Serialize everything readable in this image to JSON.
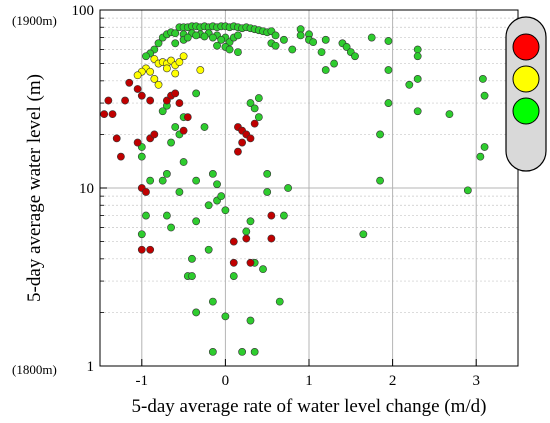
{
  "chart_data": {
    "type": "scatter",
    "title": "",
    "xlabel": "5-day average rate of water level change (m/d)",
    "ylabel": "5-day average water level (m)",
    "xlim": [
      -1.5,
      3.5
    ],
    "ylim": [
      1,
      100
    ],
    "yscale": "log",
    "grid": true,
    "x_ticks": [
      -1,
      0,
      1,
      2,
      3
    ],
    "y_ticks": [
      1,
      10,
      100
    ],
    "y_top_note": "(1900m)",
    "y_bottom_note": "(1800m)",
    "legend": {
      "type": "traffic-light",
      "placement": "right",
      "lights": [
        "#ff0000",
        "#ffff00",
        "#00ff00"
      ]
    },
    "colors": {
      "red": "#c00000",
      "yellow": "#ffff00",
      "green": "#2ecc2e"
    },
    "series": [
      {
        "color_key": "green",
        "points": [
          [
            -0.55,
            80
          ],
          [
            -0.5,
            80
          ],
          [
            -0.45,
            80
          ],
          [
            -0.4,
            81
          ],
          [
            -0.35,
            81
          ],
          [
            -0.3,
            80
          ],
          [
            -0.25,
            81
          ],
          [
            -0.2,
            80
          ],
          [
            -0.15,
            81
          ],
          [
            -0.1,
            80
          ],
          [
            -0.05,
            81
          ],
          [
            0.0,
            81
          ],
          [
            0.05,
            80
          ],
          [
            0.1,
            81
          ],
          [
            0.15,
            80
          ],
          [
            0.2,
            79
          ],
          [
            0.25,
            80
          ],
          [
            0.3,
            79
          ],
          [
            -0.8,
            65
          ],
          [
            -0.75,
            70
          ],
          [
            -0.7,
            73
          ],
          [
            -0.65,
            75
          ],
          [
            -0.6,
            74
          ],
          [
            -0.5,
            73
          ],
          [
            -0.4,
            74
          ],
          [
            -0.3,
            73
          ],
          [
            -0.2,
            74
          ],
          [
            -0.1,
            72
          ],
          [
            0.0,
            70
          ],
          [
            -0.85,
            60
          ],
          [
            -0.9,
            57
          ],
          [
            -0.95,
            55
          ],
          [
            -0.6,
            65
          ],
          [
            -0.5,
            68
          ],
          [
            -0.45,
            70
          ],
          [
            -0.35,
            72
          ],
          [
            -0.25,
            71
          ],
          [
            -0.15,
            70
          ],
          [
            -0.05,
            68
          ],
          [
            0.05,
            66
          ],
          [
            0.1,
            70
          ],
          [
            0.15,
            72
          ],
          [
            0.35,
            78
          ],
          [
            0.4,
            77
          ],
          [
            0.45,
            76
          ],
          [
            0.5,
            75
          ],
          [
            0.55,
            76
          ],
          [
            0.6,
            72
          ],
          [
            0.7,
            68
          ],
          [
            0.8,
            60
          ],
          [
            0.9,
            78
          ],
          [
            0.9,
            72
          ],
          [
            1.0,
            73
          ],
          [
            1.0,
            68
          ],
          [
            1.05,
            66
          ],
          [
            1.2,
            68
          ],
          [
            1.4,
            65
          ],
          [
            1.45,
            62
          ],
          [
            1.5,
            58
          ],
          [
            1.55,
            55
          ],
          [
            1.75,
            70
          ],
          [
            1.95,
            67
          ],
          [
            2.3,
            60
          ],
          [
            2.3,
            55
          ],
          [
            0.0,
            62
          ],
          [
            0.05,
            60
          ],
          [
            0.15,
            58
          ],
          [
            -0.1,
            63
          ],
          [
            0.55,
            65
          ],
          [
            0.6,
            63
          ],
          [
            1.15,
            58
          ],
          [
            1.3,
            50
          ],
          [
            1.2,
            46
          ],
          [
            1.95,
            46
          ],
          [
            2.3,
            41
          ],
          [
            2.2,
            38
          ],
          [
            1.95,
            30
          ],
          [
            2.3,
            27
          ],
          [
            2.68,
            26
          ],
          [
            3.08,
            41
          ],
          [
            3.1,
            33
          ],
          [
            -0.5,
            25
          ],
          [
            -0.6,
            22
          ],
          [
            -0.7,
            29
          ],
          [
            -0.75,
            27
          ],
          [
            -0.65,
            18
          ],
          [
            -0.55,
            20
          ],
          [
            -0.35,
            34
          ],
          [
            -0.25,
            22
          ],
          [
            0.3,
            30
          ],
          [
            0.35,
            28
          ],
          [
            0.4,
            32
          ],
          [
            0.4,
            25
          ],
          [
            1.85,
            20
          ],
          [
            3.1,
            17
          ],
          [
            3.05,
            15
          ],
          [
            1.85,
            11
          ],
          [
            2.9,
            9.7
          ],
          [
            -1.0,
            17
          ],
          [
            -1.0,
            15
          ],
          [
            -0.9,
            11
          ],
          [
            -0.5,
            14
          ],
          [
            -0.7,
            12
          ],
          [
            -0.75,
            11
          ],
          [
            -0.55,
            9.5
          ],
          [
            -0.35,
            11
          ],
          [
            -0.15,
            12
          ],
          [
            -0.1,
            10.5
          ],
          [
            0.5,
            12
          ],
          [
            0.5,
            9.5
          ],
          [
            0.75,
            10
          ],
          [
            0.7,
            7
          ],
          [
            -1.0,
            5.5
          ],
          [
            -0.95,
            7
          ],
          [
            -0.7,
            7
          ],
          [
            -0.65,
            6
          ],
          [
            -0.35,
            6.5
          ],
          [
            -0.2,
            8
          ],
          [
            -0.1,
            8.5
          ],
          [
            -0.05,
            9
          ],
          [
            0.0,
            7.5
          ],
          [
            0.3,
            6.5
          ],
          [
            0.25,
            5.7
          ],
          [
            1.65,
            5.5
          ],
          [
            -0.4,
            4
          ],
          [
            -0.2,
            4.5
          ],
          [
            -0.45,
            3.2
          ],
          [
            -0.4,
            3.2
          ],
          [
            0.35,
            3.8
          ],
          [
            0.45,
            3.5
          ],
          [
            0.1,
            3.2
          ],
          [
            -0.15,
            2.3
          ],
          [
            -0.35,
            2
          ],
          [
            0.0,
            1.9
          ],
          [
            0.3,
            1.8
          ],
          [
            0.65,
            2.3
          ],
          [
            -0.15,
            1.2
          ],
          [
            0.2,
            1.2
          ],
          [
            0.35,
            1.2
          ]
        ]
      },
      {
        "color_key": "yellow",
        "points": [
          [
            -0.85,
            53
          ],
          [
            -0.8,
            50
          ],
          [
            -0.75,
            51
          ],
          [
            -0.7,
            50
          ],
          [
            -0.65,
            52
          ],
          [
            -0.6,
            49
          ],
          [
            -0.55,
            51
          ],
          [
            -0.5,
            55
          ],
          [
            -0.95,
            47
          ],
          [
            -1.0,
            45
          ],
          [
            -1.05,
            43
          ],
          [
            -0.7,
            47
          ],
          [
            -0.6,
            44
          ],
          [
            -0.9,
            45
          ],
          [
            -0.3,
            46
          ],
          [
            -0.85,
            41
          ],
          [
            -0.8,
            38
          ]
        ]
      },
      {
        "color_key": "red",
        "points": [
          [
            -1.15,
            39
          ],
          [
            -1.05,
            36
          ],
          [
            -1.0,
            33
          ],
          [
            -0.9,
            31
          ],
          [
            -0.7,
            31
          ],
          [
            -0.65,
            33
          ],
          [
            -0.6,
            34
          ],
          [
            -0.55,
            30
          ],
          [
            -1.2,
            31
          ],
          [
            -1.4,
            31
          ],
          [
            -1.35,
            26
          ],
          [
            -1.45,
            26
          ],
          [
            -1.3,
            19
          ],
          [
            -1.25,
            15
          ],
          [
            -1.05,
            18
          ],
          [
            -0.9,
            19
          ],
          [
            -0.85,
            20
          ],
          [
            -0.5,
            21
          ],
          [
            -0.45,
            25
          ],
          [
            -1.0,
            10
          ],
          [
            -0.95,
            9.5
          ],
          [
            0.15,
            22
          ],
          [
            0.2,
            21
          ],
          [
            0.25,
            20
          ],
          [
            0.2,
            18
          ],
          [
            0.3,
            19
          ],
          [
            0.15,
            16
          ],
          [
            0.35,
            23
          ],
          [
            -1.0,
            4.5
          ],
          [
            -0.9,
            4.5
          ],
          [
            0.1,
            5
          ],
          [
            0.25,
            5.2
          ],
          [
            0.55,
            7
          ],
          [
            0.55,
            5.2
          ],
          [
            0.1,
            3.8
          ],
          [
            0.3,
            3.8
          ]
        ]
      }
    ]
  }
}
